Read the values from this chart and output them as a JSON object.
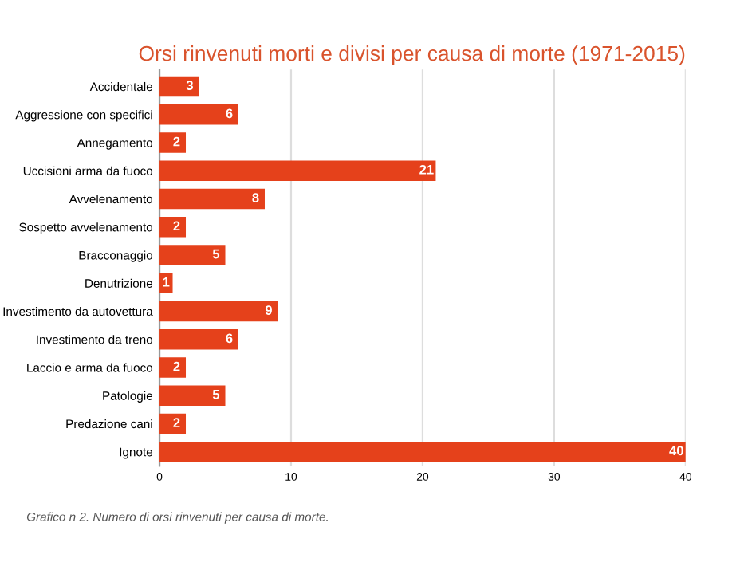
{
  "chart_data": {
    "type": "bar",
    "orientation": "horizontal",
    "title": "Orsi rinvenuti morti e divisi per causa di morte (1971-2015)",
    "categories": [
      "Accidentale",
      "Aggressione con specifici",
      "Annegamento",
      "Uccisioni arma da fuoco",
      "Avvelenamento",
      "Sospetto avvelenamento",
      "Bracconaggio",
      "Denutrizione",
      "Investimento da autovettura",
      "Investimento da treno",
      "Laccio e arma da fuoco",
      "Patologie",
      "Predazione cani",
      "Ignote"
    ],
    "values": [
      3,
      6,
      2,
      21,
      8,
      2,
      5,
      1,
      9,
      6,
      2,
      5,
      2,
      40
    ],
    "color": "#e5411b",
    "xlim": [
      0,
      40
    ],
    "xticks": [
      0,
      10,
      20,
      30,
      40
    ],
    "grid": "x",
    "data_labels": true,
    "annotations": [
      "Grafico n 2. Numero di orsi rinvenuti per causa di morte."
    ]
  }
}
